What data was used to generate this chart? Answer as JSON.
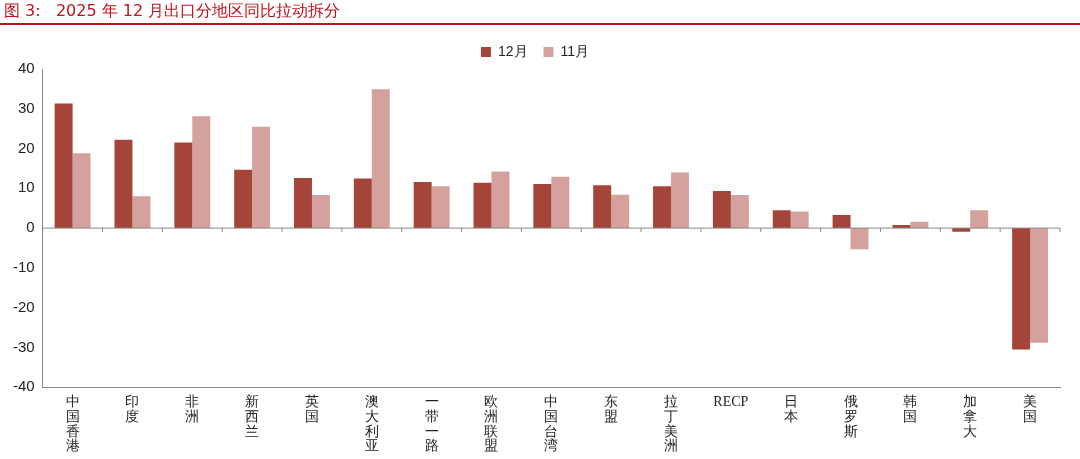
{
  "chart_data": {
    "type": "bar",
    "title": "图 3:   2025 年 12 月出口分地区同比拉动拆分",
    "categories": [
      "中国香港",
      "印度",
      "非洲",
      "新西兰",
      "英国",
      "澳大利亚",
      "一带一路",
      "欧洲联盟",
      "中国台湾",
      "东盟",
      "拉丁美洲",
      "RECP",
      "日本",
      "俄罗斯",
      "韩国",
      "加拿大",
      "美国"
    ],
    "series": [
      {
        "name": "12月",
        "color": "#a5453a",
        "values": [
          31.3,
          22.2,
          21.5,
          14.7,
          12.6,
          12.5,
          11.6,
          11.4,
          11.1,
          10.8,
          10.5,
          9.3,
          4.5,
          3.3,
          0.8,
          -0.9,
          -30.5
        ]
      },
      {
        "name": "11月",
        "color": "#d4a19c",
        "values": [
          18.8,
          8.0,
          28.1,
          25.5,
          8.3,
          34.9,
          10.5,
          14.2,
          12.9,
          8.4,
          14.0,
          8.3,
          4.2,
          -5.3,
          1.6,
          4.5,
          -28.8
        ]
      }
    ],
    "ylim": [
      -40,
      40
    ],
    "yticks": [
      -40,
      -30,
      -20,
      -10,
      0,
      10,
      20,
      30,
      40
    ],
    "ref_lines": [
      {
        "axis": "y",
        "value": 0,
        "color": "#888888"
      }
    ],
    "grid": false,
    "legend": "top"
  }
}
